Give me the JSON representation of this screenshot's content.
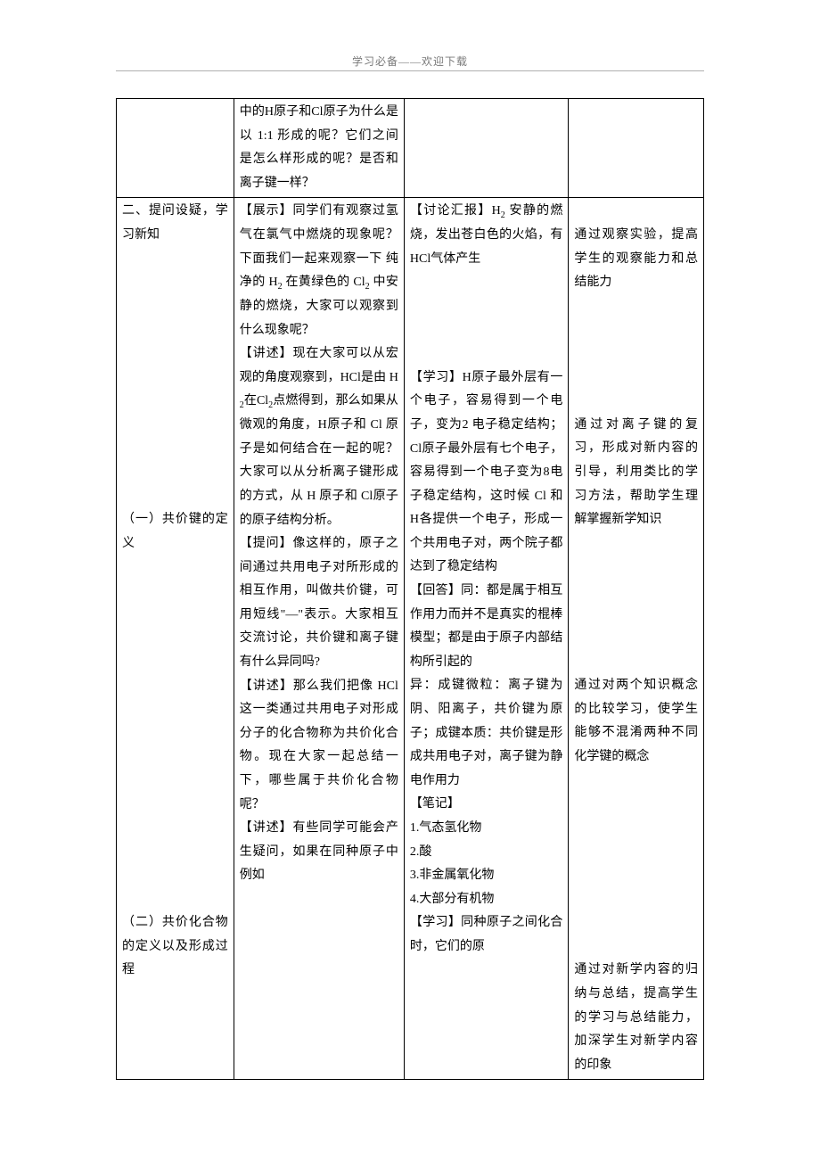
{
  "header": {
    "text_left": "学习必备——",
    "text_right": "欢迎下载"
  },
  "table": {
    "rows": [
      {
        "c1": "",
        "c2": "中的H原子和Cl原子为什么是以 1:1 形成的呢？它们之间是怎么样形成的呢？是否和离子键一样？",
        "c3": "",
        "c4": ""
      },
      {
        "c1": "二、提问设疑，学习新知\n\n\n\n\n\n\n\n\n\n\n\n（一）共价键的定义\n\n\n\n\n\n\n\n\n\n\n\n\n\n\n\n（二）共价化合物的定义以及形成过程",
        "c2": "【展示】同学们有观察过氢气在氯气中燃烧的现象呢？下面我们一起来观察一下 纯净的 H₂ 在黄绿色的 Cl₂ 中安静的燃烧，大家可以观察到什么现象呢？\n【讲述】现在大家可以从宏观的角度观察到，HCl是由 H₂在Cl₂点燃得到，那么如果从微观的角度，H原子和 Cl 原子是如何结合在一起的呢？大家可以从分析离子键形成的方式，从 H 原子和 Cl原子的原子结构分析。\n【提问】像这样的，原子之间通过共用电子对所形成的相互作用，叫做共价键，可用短线\"—\"表示。大家相互交流讨论，共价键和离子键有什么异同吗?\n【讲述】那么我们把像 HCl这一类通过共用电子对形成分子的化合物称为共价化合物。现在大家一起总结一下，哪些属于共价化合物呢？\n【讲述】有些同学可能会产生疑问，如果在同种原子中例如",
        "c3": "【讨论汇报】H₂ 安静的燃烧，发出苍白色的火焰，有 HCl气体产生\n\n\n\n\n【学习】H原子最外层有一个电子，容易得到一个电子，变为2 电子稳定结构；Cl原子最外层有七个电子，容易得到一个电子变为8电子稳定结构，这时候 Cl 和 H各提供一个电子，形成一个共用电子对，两个院子都达到了稳定结构\n【回答】同：都是属于相互作用力而并不是真实的棍棒模型；都是由于原子内部结构所引起的\n异：成键微粒：离子键为阴、阳离子，共价键为原子；成键本质：共价键是形成共用电子对，离子键为静电作用力\n【笔记】\n1.气态氢化物\n2.酸\n3.非金属氧化物\n4.大部分有机物\n【学习】同种原子之间化合时，它们的原",
        "c4": "\n通过观察实验，提高学生的观察能力和总结能力\n\n\n\n\n\n通过对离子键的复习，形成对新内容的引导，利用类比的学习方法，帮助学生理解掌握新学知识\n\n\n\n\n\n\n通过对两个知识概念的比较学习，使学生能够不混淆两种不同化学键的概念\n\n\n\n\n\n\n\n\n通过对新学内容的归纳与总结，提高学生的学习与总结能力，加深学生对新学内容的印象"
      }
    ]
  }
}
